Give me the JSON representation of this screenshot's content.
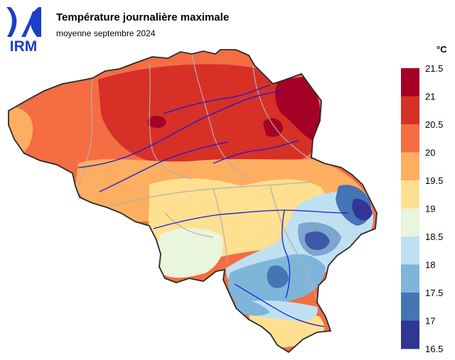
{
  "header": {
    "title": "Température journalière maximale",
    "subtitle": "moyenne septembre 2024"
  },
  "logo": {
    "text": "IRM",
    "color": "#1a3fc7"
  },
  "legend": {
    "unit": "°C",
    "ticks": [
      "21.5",
      "21",
      "20.5",
      "20",
      "19.5",
      "19",
      "18.5",
      "18",
      "17.5",
      "17",
      "16.5"
    ],
    "bins": [
      {
        "min": 21.0,
        "max": 21.5,
        "color": "#a50026"
      },
      {
        "min": 20.5,
        "max": 21.0,
        "color": "#d73027"
      },
      {
        "min": 20.0,
        "max": 20.5,
        "color": "#f46d43"
      },
      {
        "min": 19.5,
        "max": 20.0,
        "color": "#fdae61"
      },
      {
        "min": 19.0,
        "max": 19.5,
        "color": "#fee090"
      },
      {
        "min": 18.5,
        "max": 19.0,
        "color": "#e9f5dc"
      },
      {
        "min": 18.0,
        "max": 18.5,
        "color": "#bfe0f0"
      },
      {
        "min": 17.5,
        "max": 18.0,
        "color": "#7eb6da"
      },
      {
        "min": 17.0,
        "max": 17.5,
        "color": "#4575b4"
      },
      {
        "min": 16.5,
        "max": 17.0,
        "color": "#313695"
      }
    ]
  },
  "map": {
    "border_color": "#2a2a2a",
    "province_border_color": "#b0b0b0",
    "river_color": "#1a1adc"
  }
}
